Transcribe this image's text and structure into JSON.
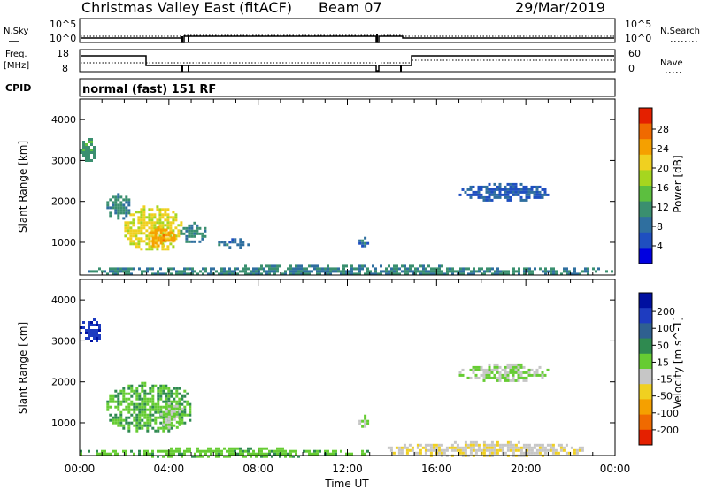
{
  "header": {
    "site": "Christmas Valley East (fitACF)",
    "beam": "Beam 07",
    "date": "29/Mar/2019"
  },
  "strip": {
    "nsky_label": "N.Sky",
    "nsearch_label": "N.Search",
    "nsky_ticks": [
      "10^5",
      "10^0"
    ],
    "nsearch_ticks": [
      "10^5",
      "10^0"
    ],
    "freq_label_1": "Freq.",
    "freq_label_2": "[MHz]",
    "freq_ticks": [
      "18",
      "8"
    ],
    "nave_label": "Nave",
    "nave_ticks": [
      "60",
      "0"
    ],
    "cpid_label": "CPID",
    "cpid_value": "normal (fast) 151 RF"
  },
  "colors": {
    "power_scale": [
      "#0000e0",
      "#1f4fc0",
      "#2f6f9f",
      "#3a8f6f",
      "#5cbf3f",
      "#a6d61f",
      "#f0d020",
      "#f5a000",
      "#f06a00",
      "#e42000"
    ],
    "velocity_scale": [
      "#0010a0",
      "#1e3cc0",
      "#2f6090",
      "#2f8a50",
      "#66cc33",
      "#c6c6c6",
      "#f0d020",
      "#f5a000",
      "#f06a00",
      "#e42000"
    ]
  },
  "chart_data": [
    {
      "type": "heatmap",
      "name": "power",
      "xlabel": "",
      "ylabel": "Slant Range [km]",
      "yticks": [
        "1000",
        "2000",
        "3000",
        "4000"
      ],
      "ylim": [
        200,
        4500
      ],
      "xlim": [
        0,
        24
      ],
      "colorbar_label": "Power [dB]",
      "colorbar_ticks": [
        "4",
        "8",
        "12",
        "16",
        "20",
        "24",
        "28"
      ],
      "regions": [
        {
          "t0": 2.0,
          "t1": 4.5,
          "r0": 800,
          "r1": 1900,
          "value": 20
        },
        {
          "t0": 3.0,
          "t1": 4.2,
          "r0": 900,
          "r1": 1400,
          "value": 24
        },
        {
          "t0": 1.2,
          "t1": 2.2,
          "r0": 1600,
          "r1": 2200,
          "value": 10
        },
        {
          "t0": 4.5,
          "t1": 5.6,
          "r0": 1000,
          "r1": 1500,
          "value": 10
        },
        {
          "t0": 6.2,
          "t1": 7.6,
          "r0": 900,
          "r1": 1100,
          "value": 8
        },
        {
          "t0": 12.5,
          "t1": 12.9,
          "r0": 900,
          "r1": 1200,
          "value": 8
        },
        {
          "t0": 17.0,
          "t1": 21.0,
          "r0": 2050,
          "r1": 2450,
          "value": 6
        },
        {
          "t0": 0.0,
          "t1": 0.7,
          "r0": 3000,
          "r1": 3550,
          "value": 12
        },
        {
          "t0": 0.0,
          "t1": 23.9,
          "r0": 200,
          "r1": 450,
          "value": 10
        }
      ]
    },
    {
      "type": "heatmap",
      "name": "velocity",
      "xlabel": "Time UT",
      "ylabel": "Slant Range [km]",
      "yticks": [
        "1000",
        "2000",
        "3000",
        "4000"
      ],
      "ylim": [
        200,
        4500
      ],
      "xlim": [
        0,
        24
      ],
      "xticks": [
        "00:00",
        "04:00",
        "08:00",
        "12:00",
        "16:00",
        "20:00",
        "00:00"
      ],
      "colorbar_label": "Velocity [m s^-1]",
      "colorbar_ticks": [
        "200",
        "100",
        "50",
        "15",
        "-15",
        "-50",
        "-100",
        "-200"
      ],
      "regions": [
        {
          "t0": 1.2,
          "t1": 5.0,
          "r0": 800,
          "r1": 2000,
          "value": 40
        },
        {
          "t0": 3.6,
          "t1": 4.6,
          "r0": 900,
          "r1": 1500,
          "value": 0
        },
        {
          "t0": 0.0,
          "t1": 0.9,
          "r0": 3000,
          "r1": 3550,
          "value": 180
        },
        {
          "t0": 12.5,
          "t1": 12.9,
          "r0": 900,
          "r1": 1200,
          "value": 0
        },
        {
          "t0": 17.0,
          "t1": 21.0,
          "r0": 2050,
          "r1": 2450,
          "value": 0
        },
        {
          "t0": 13.8,
          "t1": 22.5,
          "r0": 200,
          "r1": 550,
          "value": -40
        },
        {
          "t0": 0.0,
          "t1": 13.0,
          "r0": 200,
          "r1": 400,
          "value": 30
        }
      ]
    }
  ]
}
